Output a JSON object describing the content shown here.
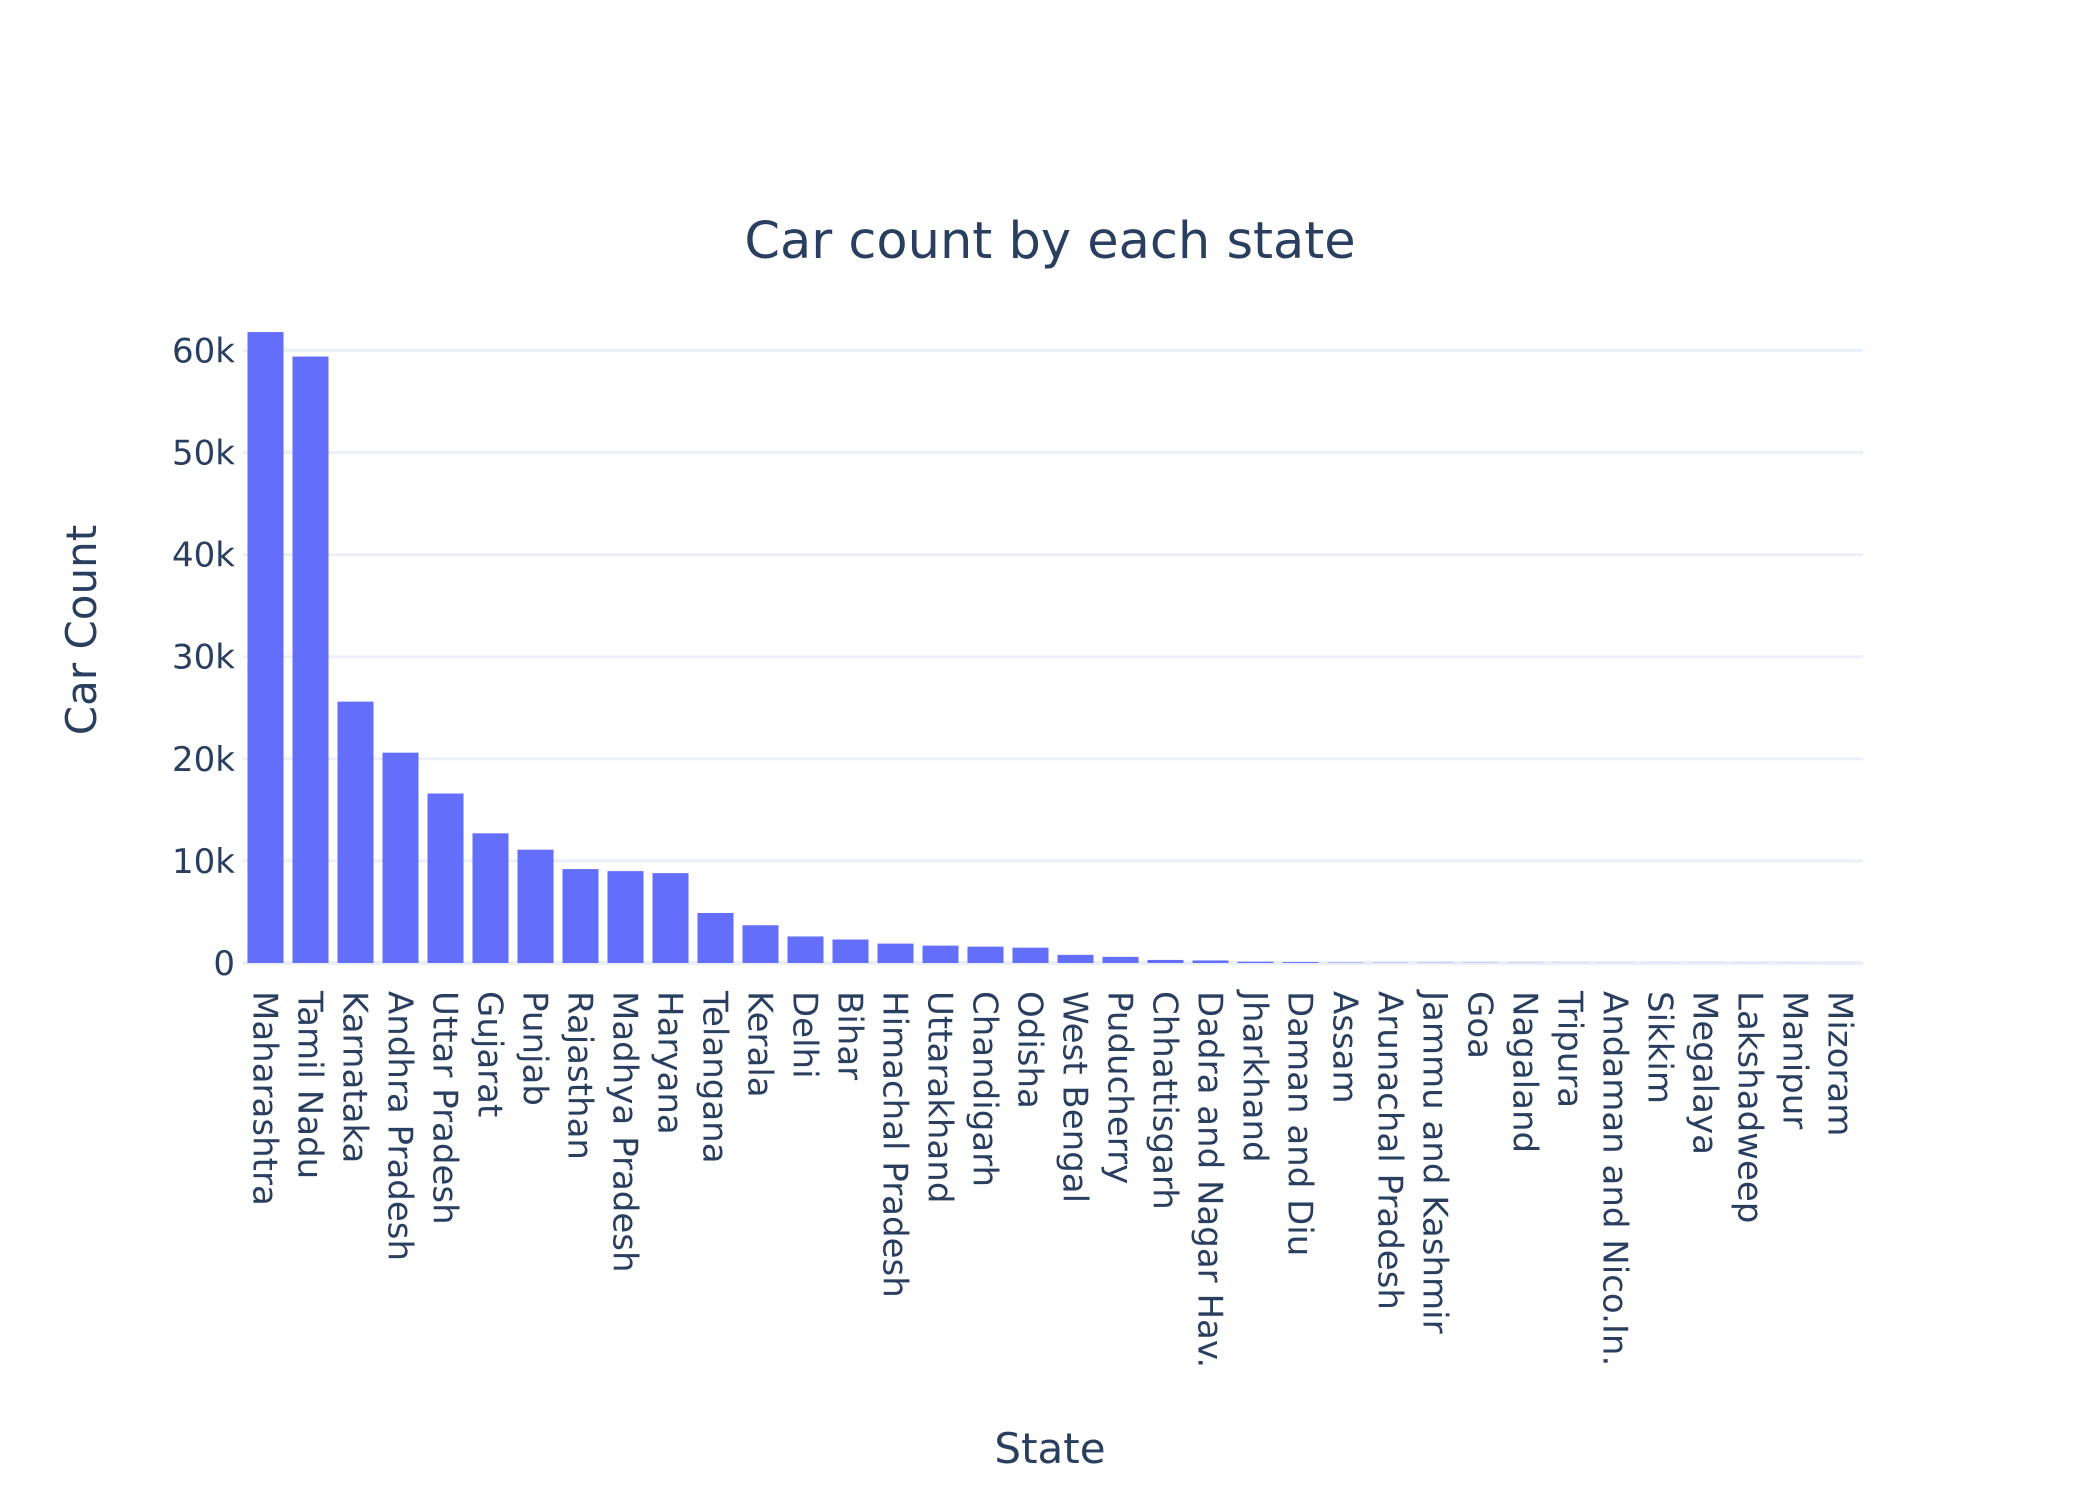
{
  "chart_data": {
    "type": "bar",
    "title": "Car count by each state",
    "xlabel": "State",
    "ylabel": "Car Count",
    "ylim": [
      0,
      62000
    ],
    "yticks": [
      0,
      10000,
      20000,
      30000,
      40000,
      50000,
      60000
    ],
    "ytick_labels": [
      "0",
      "10k",
      "20k",
      "30k",
      "40k",
      "50k",
      "60k"
    ],
    "grid": true,
    "bar_color": "#636efa",
    "categories": [
      "Maharashtra",
      "Tamil Nadu",
      "Karnataka",
      "Andhra Pradesh",
      "Uttar Pradesh",
      "Gujarat",
      "Punjab",
      "Rajasthan",
      "Madhya Pradesh",
      "Haryana",
      "Telangana",
      "Kerala",
      "Delhi",
      "Bihar",
      "Himachal Pradesh",
      "Uttarakhand",
      "Chandigarh",
      "Odisha",
      "West Bengal",
      "Puducherry",
      "Chhattisgarh",
      "Dadra and Nagar Hav.",
      "Jharkhand",
      "Daman and Diu",
      "Assam",
      "Arunachal Pradesh",
      "Jammu and Kashmir",
      "Goa",
      "Nagaland",
      "Tripura",
      "Andaman and Nico.In.",
      "Sikkim",
      "Megalaya",
      "Lakshadweep",
      "Manipur",
      "Mizoram"
    ],
    "values": [
      61800,
      59400,
      25600,
      20600,
      16600,
      12700,
      11100,
      9200,
      9000,
      8800,
      4900,
      3700,
      2600,
      2300,
      1900,
      1700,
      1600,
      1500,
      800,
      600,
      300,
      250,
      120,
      90,
      40,
      30,
      30,
      25,
      20,
      15,
      15,
      10,
      10,
      8,
      8,
      5
    ]
  }
}
